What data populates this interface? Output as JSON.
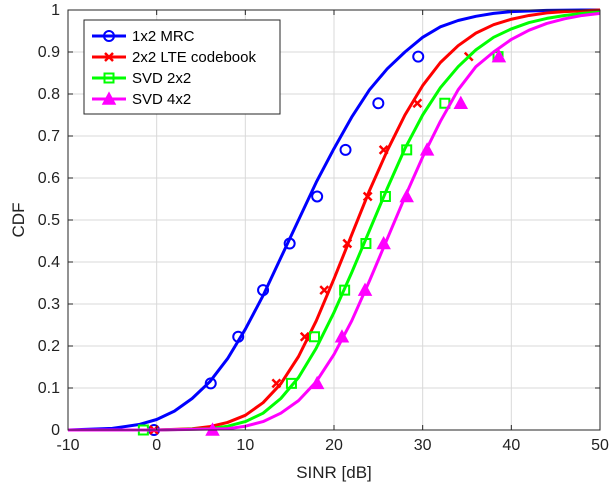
{
  "chart_data": {
    "type": "line",
    "title": "",
    "xlabel": "SINR [dB]",
    "ylabel": "CDF",
    "xlim": [
      -10,
      50
    ],
    "ylim": [
      0,
      1
    ],
    "xticks": [
      -10,
      0,
      10,
      20,
      30,
      40,
      50
    ],
    "yticks": [
      0,
      0.1,
      0.2,
      0.3,
      0.4,
      0.5,
      0.6,
      0.7,
      0.8,
      0.9,
      1
    ],
    "xtick_labels": [
      "-10",
      "0",
      "10",
      "20",
      "30",
      "40",
      "50"
    ],
    "ytick_labels": [
      "0",
      "0.1",
      "0.2",
      "0.3",
      "0.4",
      "0.5",
      "0.6",
      "0.7",
      "0.8",
      "0.9",
      "1"
    ],
    "grid": true,
    "legend_position": "top-left",
    "series": [
      {
        "name": "1x2 MRC",
        "color": "#0000ff",
        "marker": "circle",
        "x": [
          -10,
          -5,
          -2,
          0,
          2,
          4,
          6,
          8,
          10,
          12,
          14,
          16,
          18,
          20,
          22,
          24,
          26,
          28,
          30,
          32,
          34,
          36,
          38,
          40,
          44,
          48,
          50
        ],
        "y": [
          0.0,
          0.004,
          0.013,
          0.025,
          0.045,
          0.075,
          0.115,
          0.17,
          0.24,
          0.32,
          0.41,
          0.5,
          0.59,
          0.67,
          0.745,
          0.81,
          0.86,
          0.9,
          0.935,
          0.96,
          0.975,
          0.985,
          0.992,
          0.996,
          0.999,
          1.0,
          1.0
        ],
        "marker_points": [
          [
            -0.3,
            0.0
          ],
          [
            6.1,
            0.111
          ],
          [
            9.2,
            0.222
          ],
          [
            12.0,
            0.333
          ],
          [
            15.0,
            0.444
          ],
          [
            18.1,
            0.556
          ],
          [
            21.3,
            0.667
          ],
          [
            25.0,
            0.778
          ],
          [
            29.5,
            0.889
          ]
        ]
      },
      {
        "name": "2x2 LTE codebook",
        "color": "#ff0000",
        "marker": "x",
        "x": [
          -10,
          0,
          4,
          6,
          8,
          10,
          12,
          14,
          16,
          18,
          20,
          22,
          24,
          26,
          28,
          30,
          32,
          34,
          36,
          38,
          40,
          42,
          44,
          46,
          48,
          50
        ],
        "y": [
          0.0,
          0.0,
          0.003,
          0.008,
          0.018,
          0.035,
          0.065,
          0.11,
          0.175,
          0.26,
          0.36,
          0.465,
          0.57,
          0.665,
          0.75,
          0.82,
          0.875,
          0.915,
          0.945,
          0.965,
          0.978,
          0.987,
          0.993,
          0.996,
          0.998,
          1.0
        ],
        "marker_points": [
          [
            -0.3,
            0.0
          ],
          [
            13.5,
            0.111
          ],
          [
            16.7,
            0.222
          ],
          [
            18.9,
            0.333
          ],
          [
            21.5,
            0.444
          ],
          [
            23.8,
            0.556
          ],
          [
            25.6,
            0.667
          ],
          [
            29.4,
            0.778
          ],
          [
            35.2,
            0.889
          ]
        ]
      },
      {
        "name": "SVD 2x2",
        "color": "#00ff00",
        "marker": "square",
        "x": [
          -10,
          0,
          6,
          8,
          10,
          12,
          14,
          16,
          18,
          20,
          22,
          24,
          26,
          28,
          30,
          32,
          34,
          36,
          38,
          40,
          42,
          44,
          46,
          48,
          50
        ],
        "y": [
          0.0,
          0.0,
          0.003,
          0.009,
          0.02,
          0.04,
          0.075,
          0.125,
          0.195,
          0.28,
          0.375,
          0.475,
          0.575,
          0.67,
          0.75,
          0.815,
          0.865,
          0.905,
          0.935,
          0.955,
          0.97,
          0.98,
          0.987,
          0.992,
          0.995
        ],
        "marker_points": [
          [
            -1.5,
            0.0
          ],
          [
            15.2,
            0.111
          ],
          [
            17.8,
            0.222
          ],
          [
            21.2,
            0.333
          ],
          [
            23.6,
            0.444
          ],
          [
            25.8,
            0.556
          ],
          [
            28.2,
            0.667
          ],
          [
            32.5,
            0.778
          ],
          [
            38.5,
            0.889
          ]
        ]
      },
      {
        "name": "SVD 4x2",
        "color": "#ff00ff",
        "marker": "triangle",
        "x": [
          -10,
          0,
          8,
          10,
          12,
          14,
          16,
          18,
          20,
          22,
          24,
          26,
          28,
          30,
          32,
          34,
          36,
          38,
          40,
          42,
          44,
          46,
          48,
          50
        ],
        "y": [
          0.0,
          0.0,
          0.003,
          0.009,
          0.02,
          0.04,
          0.07,
          0.115,
          0.18,
          0.26,
          0.355,
          0.455,
          0.555,
          0.65,
          0.735,
          0.81,
          0.865,
          0.9,
          0.93,
          0.952,
          0.968,
          0.979,
          0.987,
          0.992
        ],
        "marker_points": [
          [
            6.3,
            0.0
          ],
          [
            18.1,
            0.111
          ],
          [
            20.9,
            0.222
          ],
          [
            23.5,
            0.333
          ],
          [
            25.6,
            0.444
          ],
          [
            28.2,
            0.556
          ],
          [
            30.5,
            0.667
          ],
          [
            34.3,
            0.778
          ],
          [
            38.6,
            0.889
          ]
        ]
      }
    ]
  }
}
